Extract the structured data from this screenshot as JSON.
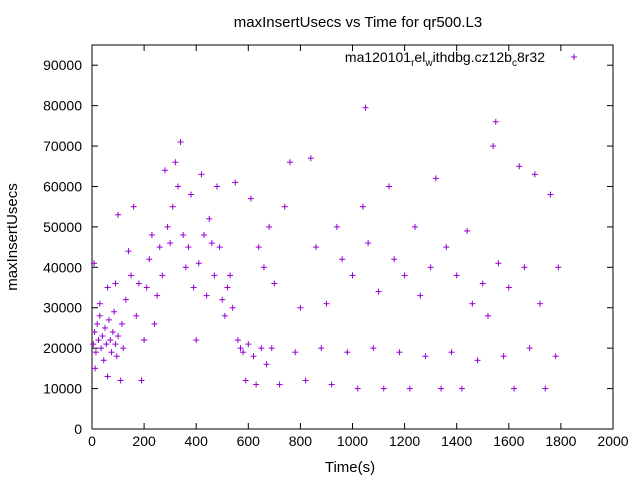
{
  "chart_data": {
    "type": "scatter",
    "title": "maxInsertUsecs vs Time for qr500.L3",
    "xlabel": "Time(s)",
    "ylabel": "maxInsertUsecs",
    "xlim": [
      0,
      2000
    ],
    "ylim": [
      0,
      95000
    ],
    "x_ticks": [
      0,
      200,
      400,
      600,
      800,
      1000,
      1200,
      1400,
      1600,
      1800,
      2000
    ],
    "y_ticks": [
      0,
      10000,
      20000,
      30000,
      40000,
      50000,
      60000,
      70000,
      80000,
      90000
    ],
    "grid": false,
    "legend_position": "top-right",
    "marker": "plus",
    "series": [
      {
        "name_parts": {
          "base": "ma120101",
          "sub1": "r",
          "mid1": "el",
          "sub2": "w",
          "mid2": "ithdbg.cz12b",
          "sub3": "c",
          "end": "8r32"
        },
        "color": "#9400d3",
        "points": [
          [
            5,
            21000
          ],
          [
            10,
            24000
          ],
          [
            15,
            19000
          ],
          [
            20,
            26000
          ],
          [
            25,
            22000
          ],
          [
            30,
            28000
          ],
          [
            35,
            20000
          ],
          [
            40,
            23000
          ],
          [
            45,
            17000
          ],
          [
            50,
            25000
          ],
          [
            55,
            21000
          ],
          [
            60,
            13000
          ],
          [
            65,
            27000
          ],
          [
            70,
            22000
          ],
          [
            75,
            19000
          ],
          [
            80,
            24000
          ],
          [
            85,
            29000
          ],
          [
            90,
            21000
          ],
          [
            95,
            18000
          ],
          [
            100,
            23000
          ],
          [
            110,
            12000
          ],
          [
            115,
            26000
          ],
          [
            120,
            20000
          ],
          [
            8,
            41000
          ],
          [
            12,
            15000
          ],
          [
            30,
            31000
          ],
          [
            60,
            35000
          ],
          [
            90,
            36000
          ],
          [
            100,
            53000
          ],
          [
            130,
            32000
          ],
          [
            140,
            44000
          ],
          [
            150,
            38000
          ],
          [
            160,
            55000
          ],
          [
            170,
            28000
          ],
          [
            180,
            36000
          ],
          [
            190,
            12000
          ],
          [
            200,
            22000
          ],
          [
            210,
            35000
          ],
          [
            220,
            42000
          ],
          [
            230,
            48000
          ],
          [
            240,
            26000
          ],
          [
            250,
            33000
          ],
          [
            260,
            45000
          ],
          [
            270,
            38000
          ],
          [
            280,
            64000
          ],
          [
            290,
            50000
          ],
          [
            300,
            46000
          ],
          [
            310,
            55000
          ],
          [
            320,
            66000
          ],
          [
            330,
            60000
          ],
          [
            340,
            71000
          ],
          [
            350,
            48000
          ],
          [
            360,
            40000
          ],
          [
            370,
            45000
          ],
          [
            380,
            58000
          ],
          [
            390,
            35000
          ],
          [
            400,
            22000
          ],
          [
            410,
            41000
          ],
          [
            420,
            63000
          ],
          [
            430,
            48000
          ],
          [
            440,
            33000
          ],
          [
            450,
            52000
          ],
          [
            460,
            46000
          ],
          [
            470,
            38000
          ],
          [
            480,
            60000
          ],
          [
            490,
            45000
          ],
          [
            500,
            32000
          ],
          [
            510,
            28000
          ],
          [
            520,
            35000
          ],
          [
            530,
            38000
          ],
          [
            540,
            30000
          ],
          [
            550,
            61000
          ],
          [
            560,
            22000
          ],
          [
            570,
            20000
          ],
          [
            580,
            19000
          ],
          [
            590,
            12000
          ],
          [
            600,
            21000
          ],
          [
            610,
            57000
          ],
          [
            620,
            18000
          ],
          [
            630,
            11000
          ],
          [
            640,
            45000
          ],
          [
            650,
            20000
          ],
          [
            660,
            40000
          ],
          [
            670,
            16000
          ],
          [
            680,
            50000
          ],
          [
            690,
            20000
          ],
          [
            700,
            36000
          ],
          [
            720,
            11000
          ],
          [
            740,
            55000
          ],
          [
            760,
            66000
          ],
          [
            780,
            19000
          ],
          [
            800,
            30000
          ],
          [
            820,
            12000
          ],
          [
            840,
            67000
          ],
          [
            860,
            45000
          ],
          [
            880,
            20000
          ],
          [
            900,
            31000
          ],
          [
            920,
            11000
          ],
          [
            940,
            50000
          ],
          [
            960,
            42000
          ],
          [
            980,
            19000
          ],
          [
            1000,
            38000
          ],
          [
            1020,
            10000
          ],
          [
            1040,
            55000
          ],
          [
            1050,
            79500
          ],
          [
            1060,
            46000
          ],
          [
            1080,
            20000
          ],
          [
            1100,
            34000
          ],
          [
            1120,
            10000
          ],
          [
            1140,
            60000
          ],
          [
            1160,
            42000
          ],
          [
            1180,
            19000
          ],
          [
            1200,
            38000
          ],
          [
            1220,
            10000
          ],
          [
            1240,
            50000
          ],
          [
            1260,
            33000
          ],
          [
            1280,
            18000
          ],
          [
            1300,
            40000
          ],
          [
            1320,
            62000
          ],
          [
            1340,
            10000
          ],
          [
            1360,
            45000
          ],
          [
            1380,
            19000
          ],
          [
            1400,
            38000
          ],
          [
            1420,
            10000
          ],
          [
            1440,
            49000
          ],
          [
            1460,
            31000
          ],
          [
            1480,
            17000
          ],
          [
            1500,
            36000
          ],
          [
            1520,
            28000
          ],
          [
            1540,
            70000
          ],
          [
            1550,
            76000
          ],
          [
            1560,
            41000
          ],
          [
            1580,
            18000
          ],
          [
            1600,
            35000
          ],
          [
            1620,
            10000
          ],
          [
            1640,
            65000
          ],
          [
            1660,
            40000
          ],
          [
            1680,
            20000
          ],
          [
            1700,
            63000
          ],
          [
            1720,
            31000
          ],
          [
            1740,
            10000
          ],
          [
            1760,
            58000
          ],
          [
            1780,
            18000
          ],
          [
            1790,
            40000
          ]
        ]
      }
    ]
  }
}
